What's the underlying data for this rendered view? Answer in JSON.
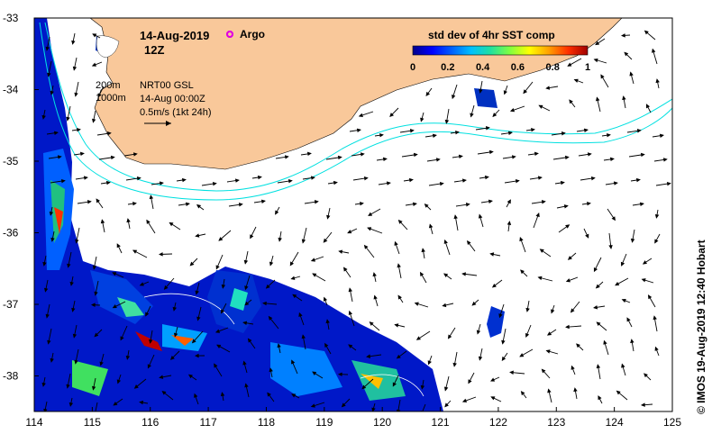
{
  "date_label": "14-Aug-2019",
  "time_label": "12Z",
  "argo_label": "Argo",
  "colorbar": {
    "title": "std dev of 4hr SST comp",
    "ticks": [
      "0",
      "0.2",
      "0.4",
      "0.6",
      "0.8",
      "1"
    ],
    "colors": [
      "#00008b",
      "#0000ff",
      "#0060ff",
      "#00c0ff",
      "#20e0a0",
      "#80ff40",
      "#ffff00",
      "#ffa000",
      "#ff3000",
      "#a00000"
    ]
  },
  "info": {
    "contour_200": "200m",
    "contour_1000": "1000m",
    "product": "NRT00 GSL",
    "valid": "14-Aug 00:00Z",
    "scale": "0.5m/s (1kt 24h)"
  },
  "credit": "© IMOS 19-Aug-2019 12:40 Hobart",
  "axes": {
    "x_ticks": [
      "114",
      "115",
      "116",
      "117",
      "118",
      "119",
      "120",
      "121",
      "122",
      "123",
      "124",
      "125"
    ],
    "y_ticks": [
      "-33",
      "-34",
      "-35",
      "-36",
      "-37",
      "-38"
    ]
  },
  "colors": {
    "land": "#f9c89a",
    "ocean": "#ffffff",
    "contour_200": "#00e0e0",
    "contour_1000": "#ffffff",
    "argo": "#e000e0"
  }
}
